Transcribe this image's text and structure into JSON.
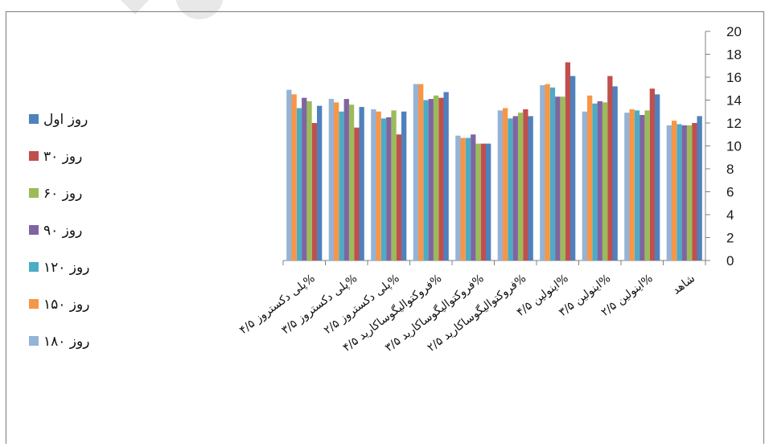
{
  "chart_data": {
    "type": "bar",
    "categories": [
      "شاهد",
      "اینولین ۲/۵%",
      "اینولین ۳/۵%",
      "اینولین ۴/۵%",
      "فروکتوالیگوساکارید ۲/۵%",
      "فروکتوالیگوساکارید ۳/۵%",
      "فروکتوالیگوساکارید ۴/۵%",
      "پلی دکستروز ۲/۵%",
      "پلی دکستروز ۳/۵%",
      "پلی دکستروز ۴/۵%"
    ],
    "series": [
      {
        "name": "روز اول",
        "color": "#4f81bd",
        "values": [
          12.6,
          14.5,
          15.2,
          16.1,
          12.6,
          10.2,
          14.7,
          13.0,
          13.4,
          13.5
        ]
      },
      {
        "name": "روز ۳۰",
        "color": "#c0504d",
        "values": [
          12.0,
          15.0,
          16.1,
          17.3,
          13.2,
          10.2,
          14.2,
          11.0,
          11.6,
          12.0
        ]
      },
      {
        "name": "روز ۶۰",
        "color": "#9bbb59",
        "values": [
          11.8,
          13.1,
          13.8,
          14.3,
          12.9,
          10.2,
          14.4,
          13.1,
          13.6,
          13.9
        ]
      },
      {
        "name": "روز ۹۰",
        "color": "#8064a2",
        "values": [
          11.8,
          12.7,
          13.9,
          14.3,
          12.6,
          11.0,
          14.1,
          12.5,
          14.1,
          14.2
        ]
      },
      {
        "name": "روز ۱۲۰",
        "color": "#4bacc6",
        "values": [
          11.9,
          13.1,
          13.7,
          15.1,
          12.4,
          10.7,
          14.0,
          12.4,
          13.0,
          13.3
        ]
      },
      {
        "name": "روز ۱۵۰",
        "color": "#f79646",
        "values": [
          12.2,
          13.2,
          14.4,
          15.4,
          13.3,
          10.7,
          15.4,
          13.0,
          13.8,
          14.5
        ]
      },
      {
        "name": "روز ۱۸۰",
        "color": "#95b3d7",
        "values": [
          11.8,
          12.9,
          13.0,
          15.3,
          13.1,
          10.9,
          15.4,
          13.2,
          14.1,
          14.9
        ]
      }
    ],
    "ylim": [
      0,
      20
    ],
    "yticks": [
      0,
      2,
      4,
      6,
      8,
      10,
      12,
      14,
      16,
      18,
      20
    ],
    "y_axis_side": "right",
    "legend_position": "left",
    "grid": false
  }
}
